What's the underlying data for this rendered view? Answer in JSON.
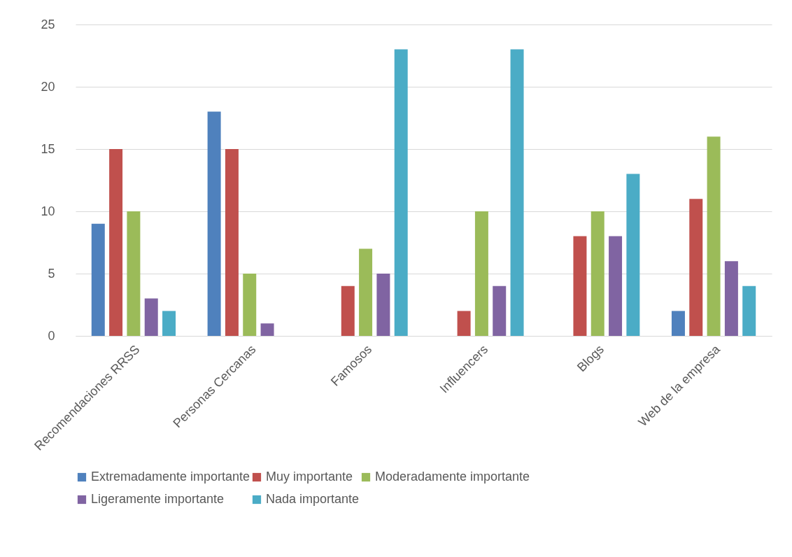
{
  "chart_data": {
    "type": "bar",
    "categories": [
      "Recomendaciones RRSS",
      "Personas Cercanas",
      "Famosos",
      "Influencers",
      "Blogs",
      "Web de la empresa"
    ],
    "series": [
      {
        "name": "Extremadamente importante",
        "color": "#4f81bd",
        "values": [
          9,
          18,
          0,
          0,
          0,
          2
        ]
      },
      {
        "name": "Muy importante",
        "color": "#c0504d",
        "values": [
          15,
          15,
          4,
          2,
          8,
          11
        ]
      },
      {
        "name": "Moderadamente importante",
        "color": "#9bbb59",
        "values": [
          10,
          5,
          7,
          10,
          10,
          16
        ]
      },
      {
        "name": "Ligeramente importante",
        "color": "#8064a2",
        "values": [
          3,
          1,
          5,
          4,
          8,
          6
        ]
      },
      {
        "name": "Nada importante",
        "color": "#4bacc6",
        "values": [
          2,
          0,
          23,
          23,
          13,
          4
        ]
      }
    ],
    "ylim": [
      0,
      25
    ],
    "yticks": [
      0,
      5,
      10,
      15,
      20,
      25
    ],
    "grid": "y",
    "legend": "bottom"
  }
}
